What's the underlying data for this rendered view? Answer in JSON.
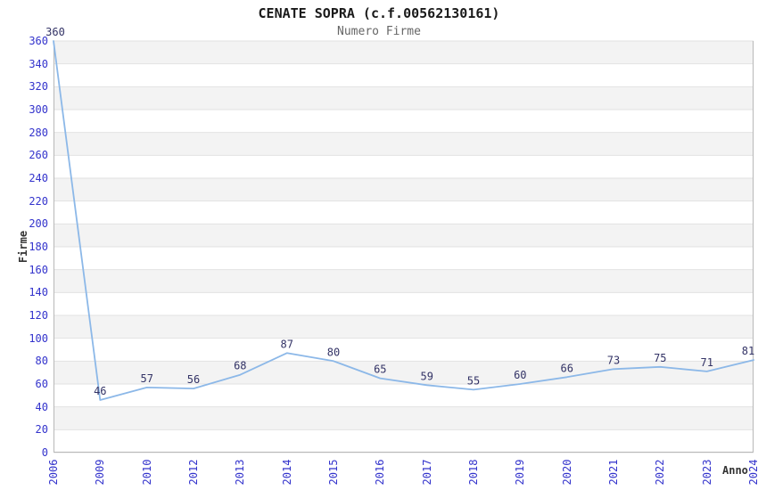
{
  "chart_data": {
    "type": "line",
    "title": "CENATE SOPRA (c.f.00562130161)",
    "subtitle": "Numero Firme",
    "xlabel": "Anno",
    "ylabel": "Firme",
    "categories": [
      "2006",
      "2009",
      "2010",
      "2012",
      "2013",
      "2014",
      "2015",
      "2016",
      "2017",
      "2018",
      "2019",
      "2020",
      "2021",
      "2022",
      "2023",
      "2024"
    ],
    "values": [
      360,
      46,
      57,
      56,
      68,
      87,
      80,
      65,
      59,
      55,
      60,
      66,
      73,
      75,
      71,
      81
    ],
    "data_labels_visible": true,
    "ylim": [
      0,
      360
    ],
    "ytick_step": 20,
    "legend": "none",
    "grid": "alternating-horizontal-bands",
    "colors": {
      "line": "#8cb8e8",
      "tick_label": "#3333cc",
      "data_label": "#333366",
      "band": "#f3f3f3",
      "gridline": "#e2e2e2",
      "axis_border": "#b8b8b8",
      "title": "#1a1a1a",
      "subtitle": "#666666",
      "axis_title": "#333333"
    }
  }
}
